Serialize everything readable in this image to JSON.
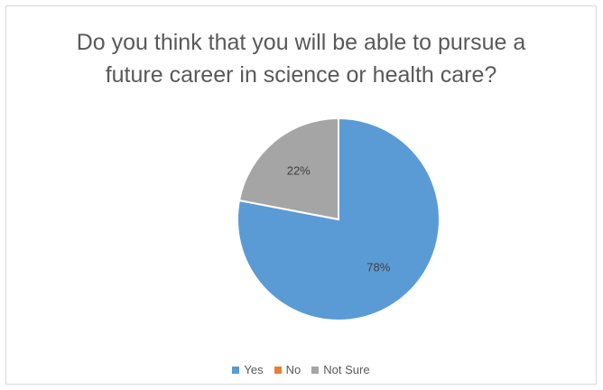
{
  "chart_data": {
    "type": "pie",
    "title_lines": [
      "Do you think that you will be able to pursue a",
      "future career in science or health care?"
    ],
    "categories": [
      "Yes",
      "No",
      "Not Sure"
    ],
    "values": [
      78,
      0,
      22
    ],
    "data_labels": [
      "78%",
      "",
      "22%"
    ],
    "colors": [
      "#5b9bd5",
      "#ed7d31",
      "#a5a5a5"
    ],
    "legend_position": "bottom"
  }
}
